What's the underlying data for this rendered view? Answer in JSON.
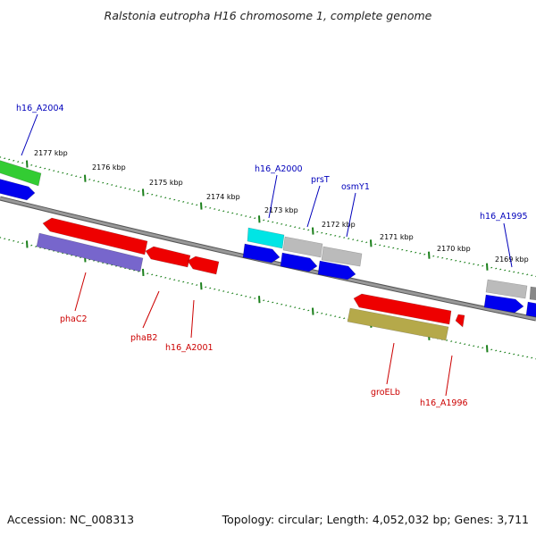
{
  "title": "Ralstonia eutropha H16 chromosome 1, complete genome",
  "footer": {
    "accession": "Accession: NC_008313",
    "summary": "Topology: circular; Length: 4,052,032 bp; Genes: 3,711"
  },
  "colors": {
    "forward_label": "#0000bb",
    "reverse_label": "#cc0000",
    "backbone": "#777777",
    "tick": "#1a7f1a"
  },
  "kbp_ticks": [
    "2177 kbp",
    "2176 kbp",
    "2175 kbp",
    "2174 kbp",
    "2173 kbp",
    "2172 kbp",
    "2171 kbp",
    "2170 kbp",
    "2169 kbp"
  ],
  "forward_labels": [
    "h16_A2004",
    "h16_A2000",
    "prsT",
    "osmY1",
    "h16_A1995"
  ],
  "reverse_labels": [
    "phaC2",
    "phaB2",
    "h16_A2001",
    "groELb",
    "h16_A1996"
  ],
  "features": [
    {
      "strand": "forward",
      "color": "#33cc33"
    },
    {
      "strand": "forward",
      "color": "#0000ee"
    },
    {
      "strand": "forward",
      "color": "#00e5e5"
    },
    {
      "strand": "forward",
      "color": "#bbbbbb"
    },
    {
      "strand": "forward",
      "color": "#bbbbbb"
    },
    {
      "strand": "forward",
      "color": "#0000ee"
    },
    {
      "strand": "forward",
      "color": "#0000ee"
    },
    {
      "strand": "forward",
      "color": "#0000ee"
    },
    {
      "strand": "forward",
      "color": "#bbbbbb"
    },
    {
      "strand": "forward",
      "color": "#888888"
    },
    {
      "strand": "forward",
      "color": "#0000ee"
    },
    {
      "strand": "forward",
      "color": "#0000ee"
    },
    {
      "strand": "reverse",
      "color": "#ee0000"
    },
    {
      "strand": "reverse",
      "color": "#7766cc"
    },
    {
      "strand": "reverse",
      "color": "#ee0000"
    },
    {
      "strand": "reverse",
      "color": "#ee0000"
    },
    {
      "strand": "reverse",
      "color": "#ee0000"
    },
    {
      "strand": "reverse",
      "color": "#b5a94a"
    },
    {
      "strand": "reverse",
      "color": "#ee0000"
    }
  ]
}
